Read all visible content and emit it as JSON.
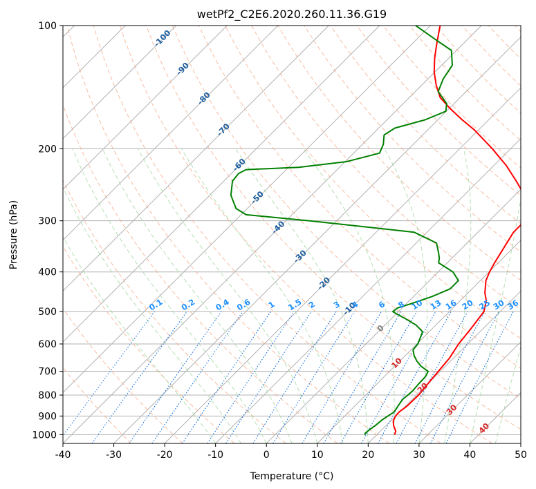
{
  "chart_data": {
    "type": "skew-t",
    "title": "wetPf2_C2E6.2020.260.11.36.G19",
    "xlabel": "Temperature (°C)",
    "ylabel": "Pressure (hPa)",
    "xlim": [
      -40,
      50
    ],
    "ylim_hpa": [
      1050,
      100
    ],
    "x_ticks": [
      "-40",
      "-30",
      "-20",
      "-10",
      "0",
      "10",
      "20",
      "30",
      "40",
      "50"
    ],
    "y_ticks": [
      "100",
      "200",
      "300",
      "400",
      "500",
      "600",
      "700",
      "800",
      "900",
      "1000"
    ],
    "colors": {
      "temperature": "#ff0000",
      "dewpoint": "#008000",
      "isotherm": "#b0b0b0",
      "dry_adiabat": "#f4a582",
      "moist_adiabat": "#a6d8a6",
      "mixing_ratio": "#1f77e0",
      "isotherm_label": "#1f5f9f",
      "mixing_label": "#1e90ff",
      "positive_label": "#d62728",
      "zero_label": "#808080"
    },
    "isotherm_labels": {
      "negative": [
        "-100",
        "-90",
        "-80",
        "-70",
        "-60",
        "-50",
        "-40",
        "-30",
        "-20",
        "-10"
      ],
      "zero": "0",
      "positive": [
        "10",
        "20",
        "30",
        "40"
      ]
    },
    "mixing_ratio_labels": [
      "0.1",
      "0.2",
      "0.4",
      "0.6",
      "1",
      "1.5",
      "2",
      "3",
      "4",
      "6",
      "8",
      "10",
      "13",
      "16",
      "20",
      "25",
      "30",
      "36"
    ],
    "series": [
      {
        "name": "temperature",
        "points": [
          [
            1000,
            23.5
          ],
          [
            980,
            23.0
          ],
          [
            950,
            21.5
          ],
          [
            925,
            20.5
          ],
          [
            900,
            20.0
          ],
          [
            880,
            19.9
          ],
          [
            850,
            20.3
          ],
          [
            800,
            20.4
          ],
          [
            750,
            20.0
          ],
          [
            700,
            19.6
          ],
          [
            650,
            19.2
          ],
          [
            600,
            18.2
          ],
          [
            550,
            17.6
          ],
          [
            500,
            16.8
          ],
          [
            470,
            15.1
          ],
          [
            450,
            13.3
          ],
          [
            420,
            11.1
          ],
          [
            400,
            10.1
          ],
          [
            380,
            9.3
          ],
          [
            350,
            8.2
          ],
          [
            320,
            7.0
          ],
          [
            300,
            7.0
          ],
          [
            280,
            4.9
          ],
          [
            260,
            1.9
          ],
          [
            240,
            -2.5
          ],
          [
            220,
            -7.5
          ],
          [
            200,
            -13.6
          ],
          [
            180,
            -20.8
          ],
          [
            170,
            -25.2
          ],
          [
            160,
            -29.6
          ],
          [
            150,
            -33.9
          ],
          [
            140,
            -37.1
          ],
          [
            130,
            -40.1
          ],
          [
            120,
            -42.8
          ],
          [
            110,
            -45.4
          ],
          [
            100,
            -48.1
          ]
        ]
      },
      {
        "name": "dewpoint",
        "points": [
          [
            1000,
            17.6
          ],
          [
            990,
            17.4
          ],
          [
            970,
            17.6
          ],
          [
            950,
            17.9
          ],
          [
            920,
            18.1
          ],
          [
            900,
            18.5
          ],
          [
            880,
            18.9
          ],
          [
            850,
            18.5
          ],
          [
            820,
            18.1
          ],
          [
            800,
            18.3
          ],
          [
            780,
            18.4
          ],
          [
            750,
            18.2
          ],
          [
            720,
            18.1
          ],
          [
            700,
            17.6
          ],
          [
            680,
            15.2
          ],
          [
            660,
            13.3
          ],
          [
            640,
            11.7
          ],
          [
            620,
            10.4
          ],
          [
            600,
            10.2
          ],
          [
            560,
            8.7
          ],
          [
            540,
            6.2
          ],
          [
            520,
            2.7
          ],
          [
            505,
            -0.2
          ],
          [
            500,
            -1.1
          ],
          [
            490,
            -0.9
          ],
          [
            480,
            0.7
          ],
          [
            460,
            3.6
          ],
          [
            440,
            5.7
          ],
          [
            420,
            5.7
          ],
          [
            400,
            2.9
          ],
          [
            380,
            -1.7
          ],
          [
            370,
            -2.5
          ],
          [
            360,
            -3.6
          ],
          [
            340,
            -6.0
          ],
          [
            320,
            -12.5
          ],
          [
            300,
            -35.3
          ],
          [
            290,
            -49.0
          ],
          [
            280,
            -52.2
          ],
          [
            260,
            -55.8
          ],
          [
            240,
            -58.3
          ],
          [
            230,
            -58.6
          ],
          [
            225,
            -57.9
          ],
          [
            222,
            -48.0
          ],
          [
            215,
            -39.7
          ],
          [
            205,
            -34.9
          ],
          [
            195,
            -35.9
          ],
          [
            185,
            -37.6
          ],
          [
            178,
            -36.8
          ],
          [
            170,
            -32.5
          ],
          [
            162,
            -30.1
          ],
          [
            155,
            -31.5
          ],
          [
            145,
            -35.5
          ],
          [
            135,
            -37.0
          ],
          [
            125,
            -37.9
          ],
          [
            115,
            -41.0
          ],
          [
            108,
            -46.4
          ],
          [
            100,
            -52.9
          ]
        ]
      }
    ]
  }
}
